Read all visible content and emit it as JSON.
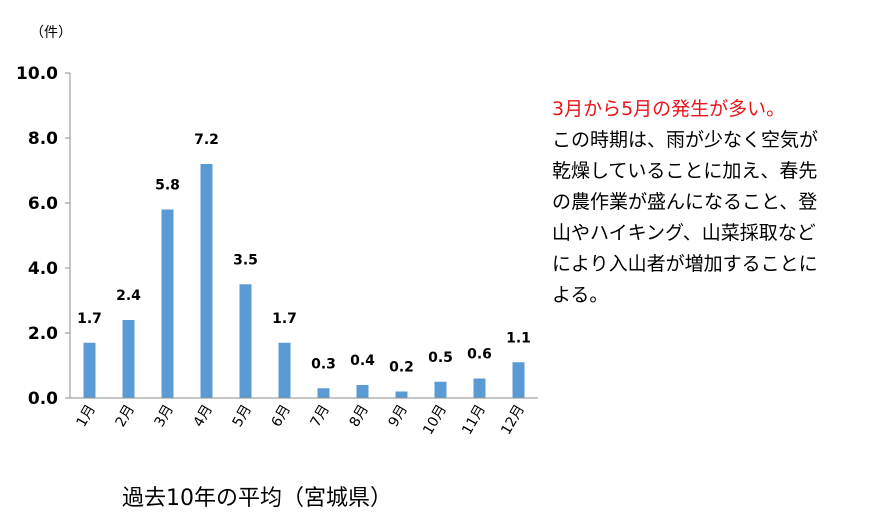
{
  "chart_data": {
    "type": "bar",
    "title": "",
    "caption": "過去10年の平均（宮城県）",
    "ylabel": "（件）",
    "xlabel": "",
    "ylim": [
      0,
      10
    ],
    "yticks": [
      "0.0",
      "2.0",
      "4.0",
      "6.0",
      "8.0",
      "10.0"
    ],
    "ytick_values": [
      0,
      2,
      4,
      6,
      8,
      10
    ],
    "categories": [
      "1月",
      "2月",
      "3月",
      "4月",
      "5月",
      "6月",
      "7月",
      "8月",
      "9月",
      "10月",
      "11月",
      "12月"
    ],
    "values": [
      1.7,
      2.4,
      5.8,
      7.2,
      3.5,
      1.7,
      0.3,
      0.4,
      0.2,
      0.5,
      0.6,
      1.1
    ],
    "value_labels": [
      "1.7",
      "2.4",
      "5.8",
      "7.2",
      "3.5",
      "1.7",
      "0.3",
      "0.4",
      "0.2",
      "0.5",
      "0.6",
      "1.1"
    ],
    "bar_color": "#5b9bd5",
    "grid": false
  },
  "note": {
    "highlight": "3月から5月の発生が多い。",
    "highlight_color": "#e8151b",
    "lines": [
      "この時期は、雨が少なく空気が",
      "乾燥していることに加え、春先",
      "の農作業が盛んになること、登",
      "山やハイキング、山菜採取など",
      "により入山者が増加することに",
      "よる。"
    ]
  }
}
